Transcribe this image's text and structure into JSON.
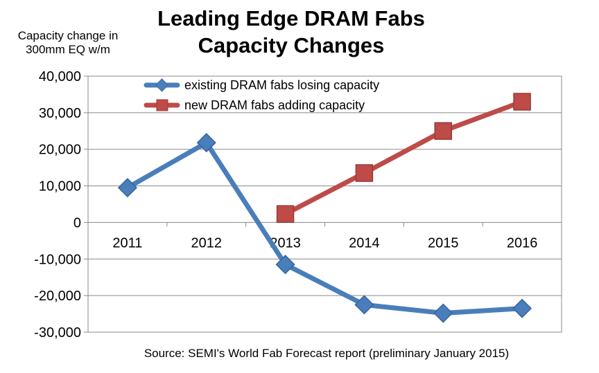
{
  "chart_data": {
    "type": "line",
    "title": [
      "Leading Edge DRAM Fabs",
      "Capacity Changes"
    ],
    "ylabel": [
      "Capacity change in",
      "300mm EQ w/m"
    ],
    "xlabel": "",
    "categories": [
      "2011",
      "2012",
      "2013",
      "2014",
      "2015",
      "2016"
    ],
    "ylim": [
      -30000,
      40000
    ],
    "yticks": [
      40000,
      30000,
      20000,
      10000,
      0,
      -10000,
      -20000,
      -30000
    ],
    "ytick_labels": [
      "40,000",
      "30,000",
      "20,000",
      "10,000",
      "0",
      "-10,000",
      "-20,000",
      "-30,000"
    ],
    "grid": true,
    "legend_position": "top",
    "series": [
      {
        "name": "existing DRAM fabs losing capacity",
        "color": "#4a7ebb",
        "marker": "diamond",
        "values": [
          9500,
          21800,
          -11500,
          -22500,
          -24800,
          -23500
        ]
      },
      {
        "name": "new DRAM fabs adding capacity",
        "color": "#be4b48",
        "marker": "square",
        "values": [
          null,
          null,
          2300,
          13500,
          25000,
          33000
        ]
      }
    ],
    "source": "Source: SEMI's World Fab Forecast report (preliminary January 2015)"
  }
}
